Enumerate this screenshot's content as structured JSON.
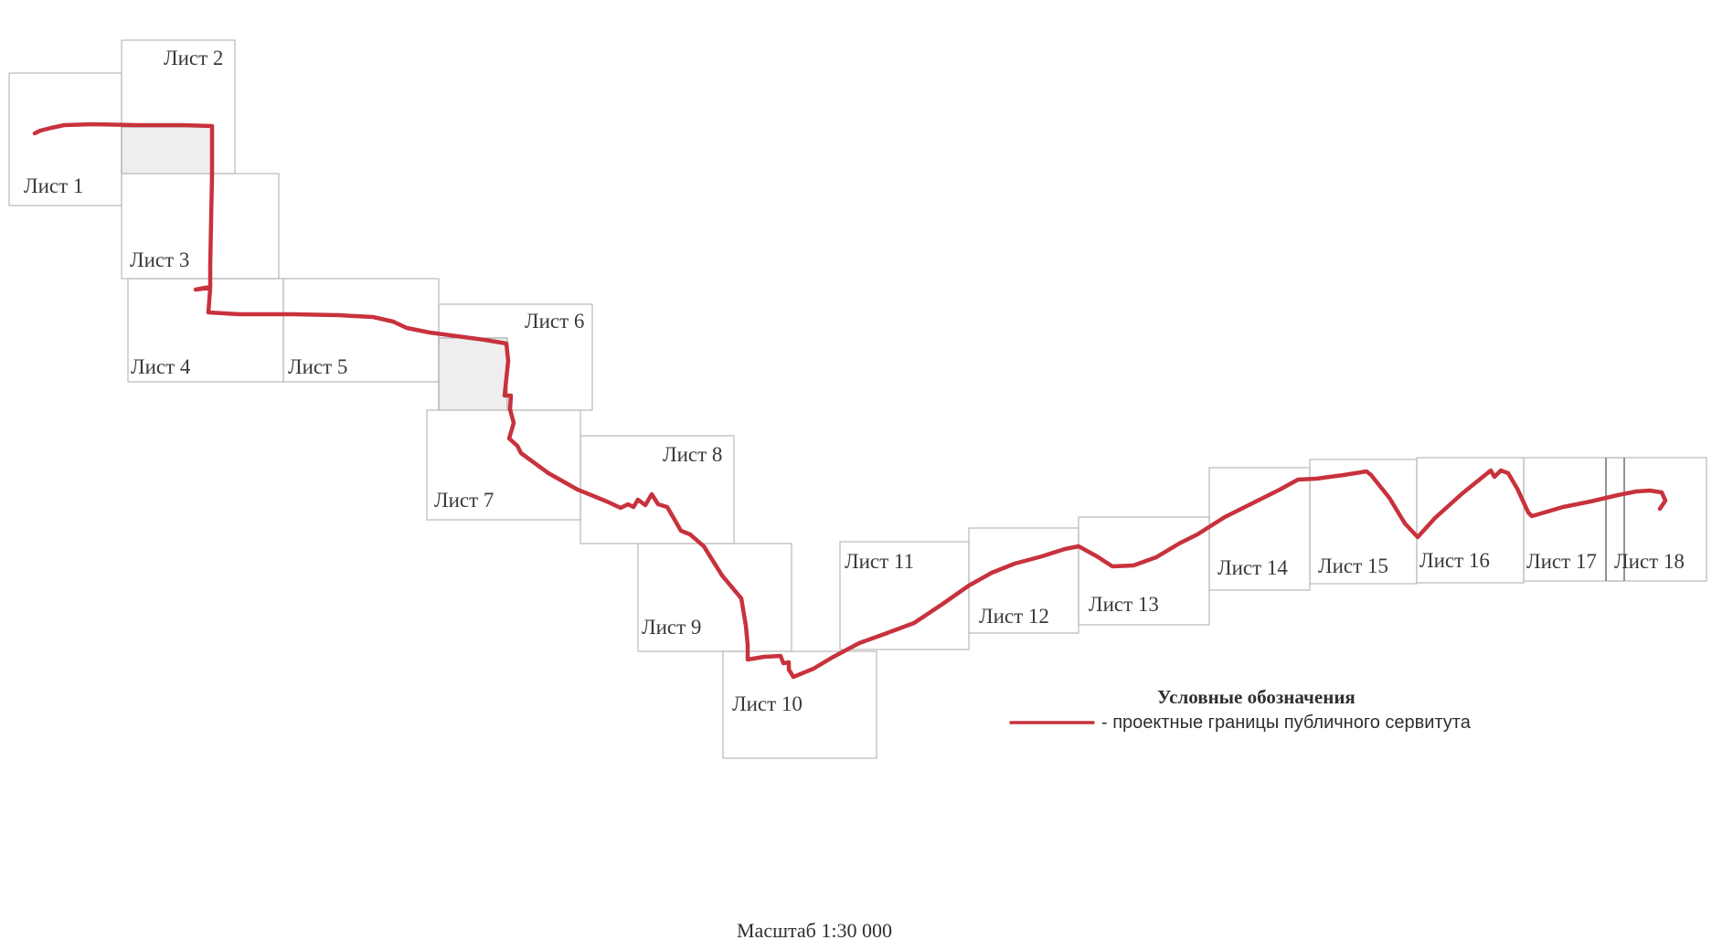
{
  "map": {
    "sheets": [
      {
        "id": 1,
        "label": "Лист 1"
      },
      {
        "id": 2,
        "label": "Лист 2"
      },
      {
        "id": 3,
        "label": "Лист 3"
      },
      {
        "id": 4,
        "label": "Лист 4"
      },
      {
        "id": 5,
        "label": "Лист 5"
      },
      {
        "id": 6,
        "label": "Лист 6"
      },
      {
        "id": 7,
        "label": "Лист 7"
      },
      {
        "id": 8,
        "label": "Лист 8"
      },
      {
        "id": 9,
        "label": "Лист 9"
      },
      {
        "id": 10,
        "label": "Лист 10"
      },
      {
        "id": 11,
        "label": "Лист 11"
      },
      {
        "id": 12,
        "label": "Лист 12"
      },
      {
        "id": 13,
        "label": "Лист 13"
      },
      {
        "id": 14,
        "label": "Лист 14"
      },
      {
        "id": 15,
        "label": "Лист 15"
      },
      {
        "id": 16,
        "label": "Лист 16"
      },
      {
        "id": 17,
        "label": "Лист 17"
      },
      {
        "id": 18,
        "label": "Лист 18"
      }
    ],
    "route_color": "#c8323c",
    "shaded_overlap_color": "#eeeeee"
  },
  "legend": {
    "title": "Условные обозначения",
    "items": [
      {
        "text": "- проектные границы публичного сервитута",
        "symbol": "red-line"
      }
    ]
  },
  "scale": {
    "text": "Масштаб 1:30 000"
  }
}
